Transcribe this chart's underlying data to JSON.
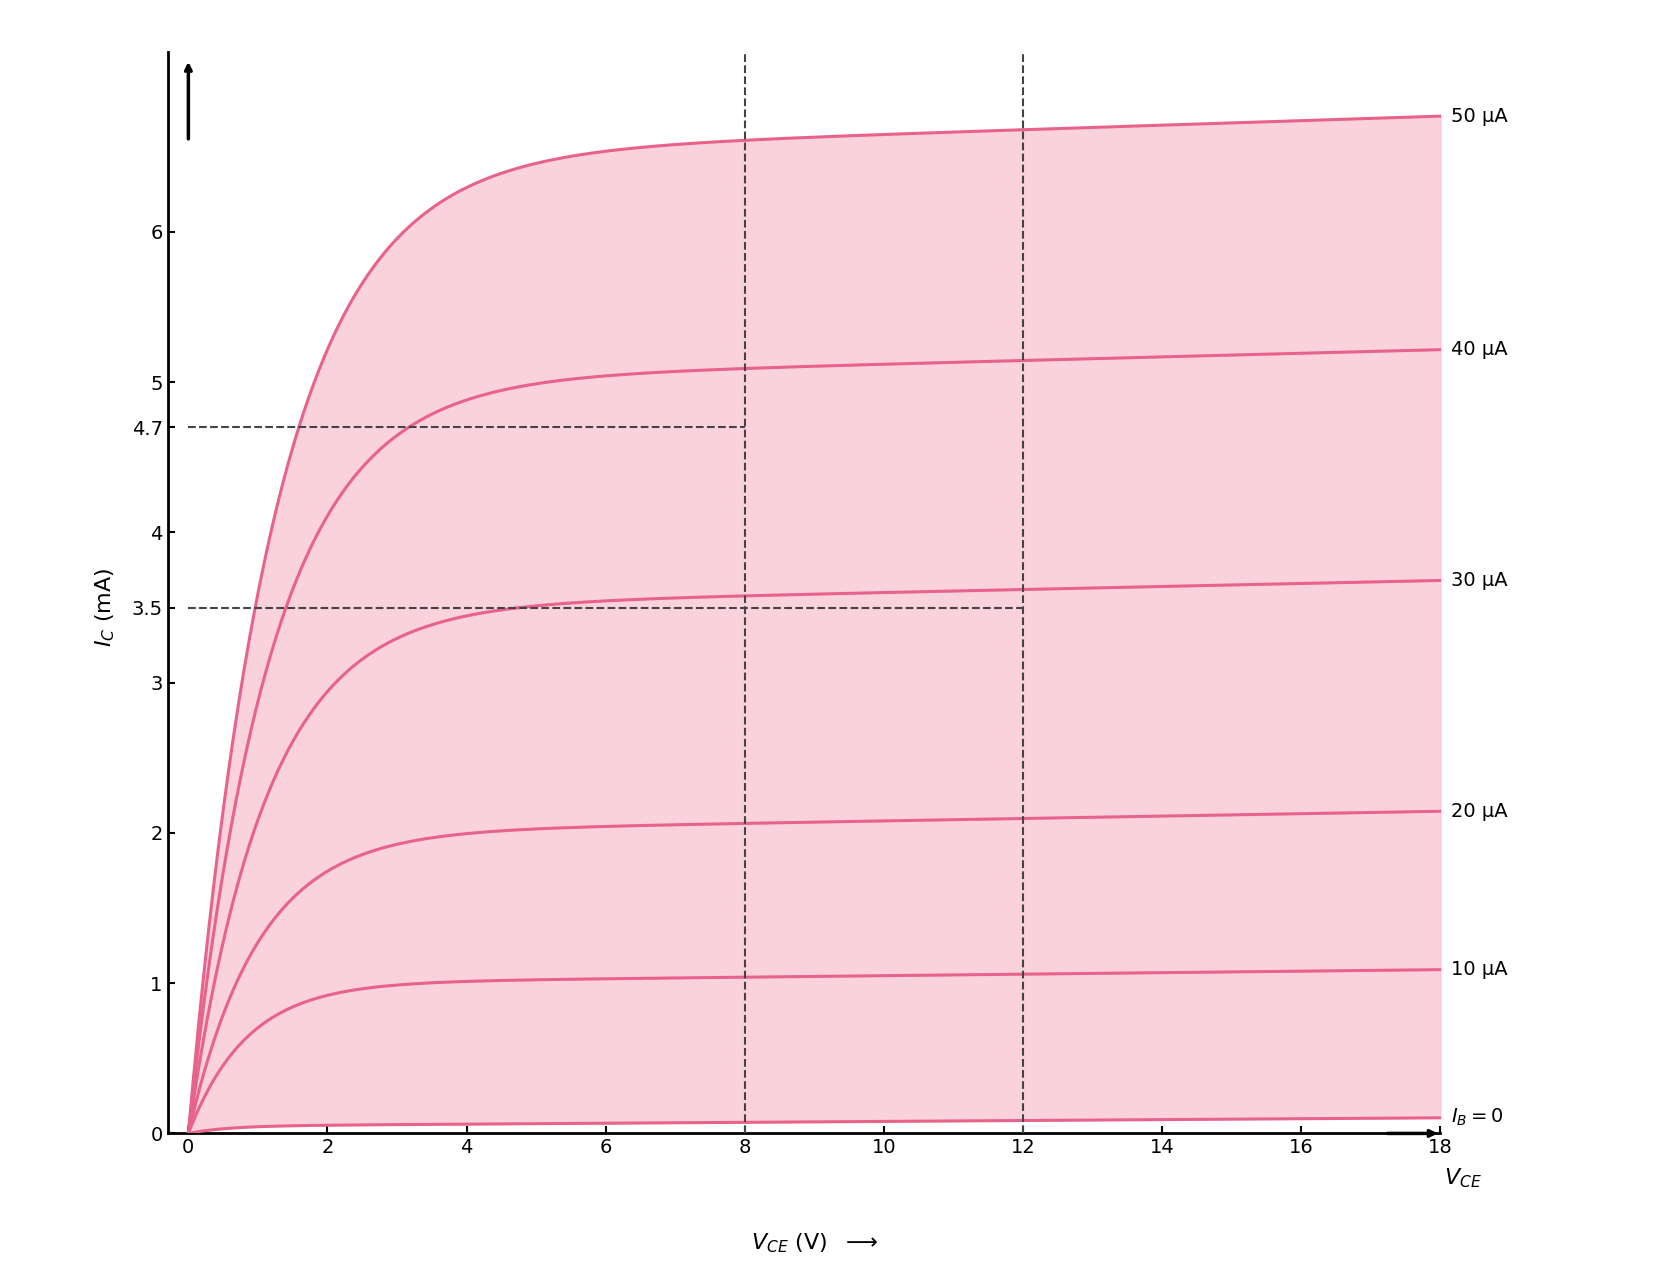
{
  "title": "",
  "xlim": [
    0,
    18
  ],
  "ylim": [
    0,
    7.2
  ],
  "xticks": [
    0,
    2,
    4,
    6,
    8,
    10,
    12,
    14,
    16,
    18
  ],
  "yticks": [
    0,
    1,
    2,
    3,
    3.5,
    4,
    4.7,
    5,
    6
  ],
  "ytick_labels": [
    "0",
    "1",
    "2",
    "3",
    "3.5",
    "4",
    "4.7",
    "5",
    "6"
  ],
  "curves": [
    {
      "Isat": 0.05,
      "k": 1.8,
      "slope": 0.003,
      "label": "$I_B = 0$"
    },
    {
      "Isat": 1.0,
      "k": 1.2,
      "slope": 0.005,
      "label": "10 μA"
    },
    {
      "Isat": 2.0,
      "k": 1.0,
      "slope": 0.008,
      "label": "20 μA"
    },
    {
      "Isat": 3.5,
      "k": 0.9,
      "slope": 0.01,
      "label": "30 μA"
    },
    {
      "Isat": 5.0,
      "k": 0.85,
      "slope": 0.012,
      "label": "40 μA"
    },
    {
      "Isat": 6.5,
      "k": 0.8,
      "slope": 0.015,
      "label": "50 μA"
    }
  ],
  "vce_dashed1": 8,
  "vce_dashed2": 12,
  "ic_dashed1": 4.7,
  "ic_dashed2": 3.5,
  "curve_color": "#E8638A",
  "fill_color": "#F8C0D0",
  "dashed_color": "#444444",
  "background_color": "#ffffff",
  "font_size": 16,
  "tick_fontsize": 14
}
